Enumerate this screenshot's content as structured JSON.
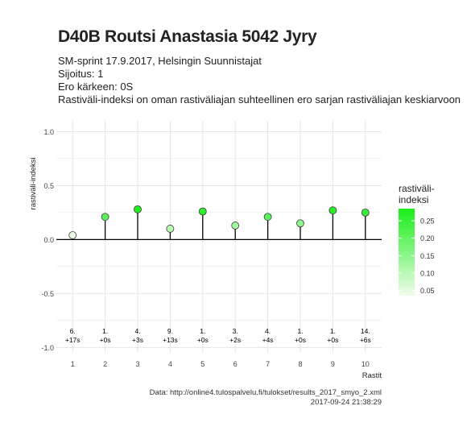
{
  "header": {
    "title": "D40B Routsi Anastasia 5042 Jyry",
    "subtitle_lines": [
      "SM-sprint 17.9.2017, Helsingin Suunnistajat",
      "Sijoitus: 1",
      "Ero kärkeen: 0S",
      "Rastiväli-indeksi on oman rastiväliajan suhteellinen ero sarjan rastiväliajan keskiarvoon"
    ]
  },
  "caption": {
    "source": "Data: http://online4.tulospalvelu.fi/tulokset/results_2017_smyo_2.xml",
    "timestamp": "2017-09-24 21:38:29"
  },
  "chart_data": {
    "type": "scatter",
    "style": "lollipop",
    "xlabel": "Rastit",
    "ylabel": "rastiväli-indeksi",
    "x": [
      1,
      2,
      3,
      4,
      5,
      6,
      7,
      8,
      9,
      10
    ],
    "values": [
      0.04,
      0.21,
      0.28,
      0.1,
      0.26,
      0.13,
      0.21,
      0.15,
      0.27,
      0.25
    ],
    "point_labels": [
      [
        "6.",
        "+17s"
      ],
      [
        "1.",
        "+0s"
      ],
      [
        "4.",
        "+3s"
      ],
      [
        "9.",
        "+13s"
      ],
      [
        "1.",
        "+0s"
      ],
      [
        "3.",
        "+2s"
      ],
      [
        "4.",
        "+4s"
      ],
      [
        "1.",
        "+0s"
      ],
      [
        "1.",
        "+0s"
      ],
      [
        "14.",
        "+6s"
      ]
    ],
    "ylim": [
      -1.05,
      1.1
    ],
    "yticks": [
      -1.0,
      -0.5,
      0.0,
      0.5,
      1.0
    ],
    "ytick_labels": [
      "-1.0",
      "-0.5",
      "0.0",
      "0.5",
      "1.0"
    ],
    "xlim": [
      0.5,
      10.5
    ],
    "grid": true,
    "legend": {
      "title_lines": [
        "rastiväli-",
        "indeksi"
      ],
      "placement": "right",
      "range": [
        0.035,
        0.285
      ],
      "ticks": [
        0.05,
        0.1,
        0.15,
        0.2,
        0.25
      ],
      "tick_labels": [
        "0.05",
        "0.10",
        "0.15",
        "0.20",
        "0.25"
      ],
      "color_low": "#f2fcec",
      "color_high": "#19ee19"
    },
    "colors": {
      "panel_bg": "#ffffff",
      "grid": "#e3e3e3",
      "stem": "#000000",
      "point_stroke": "#3a3a3a"
    }
  }
}
